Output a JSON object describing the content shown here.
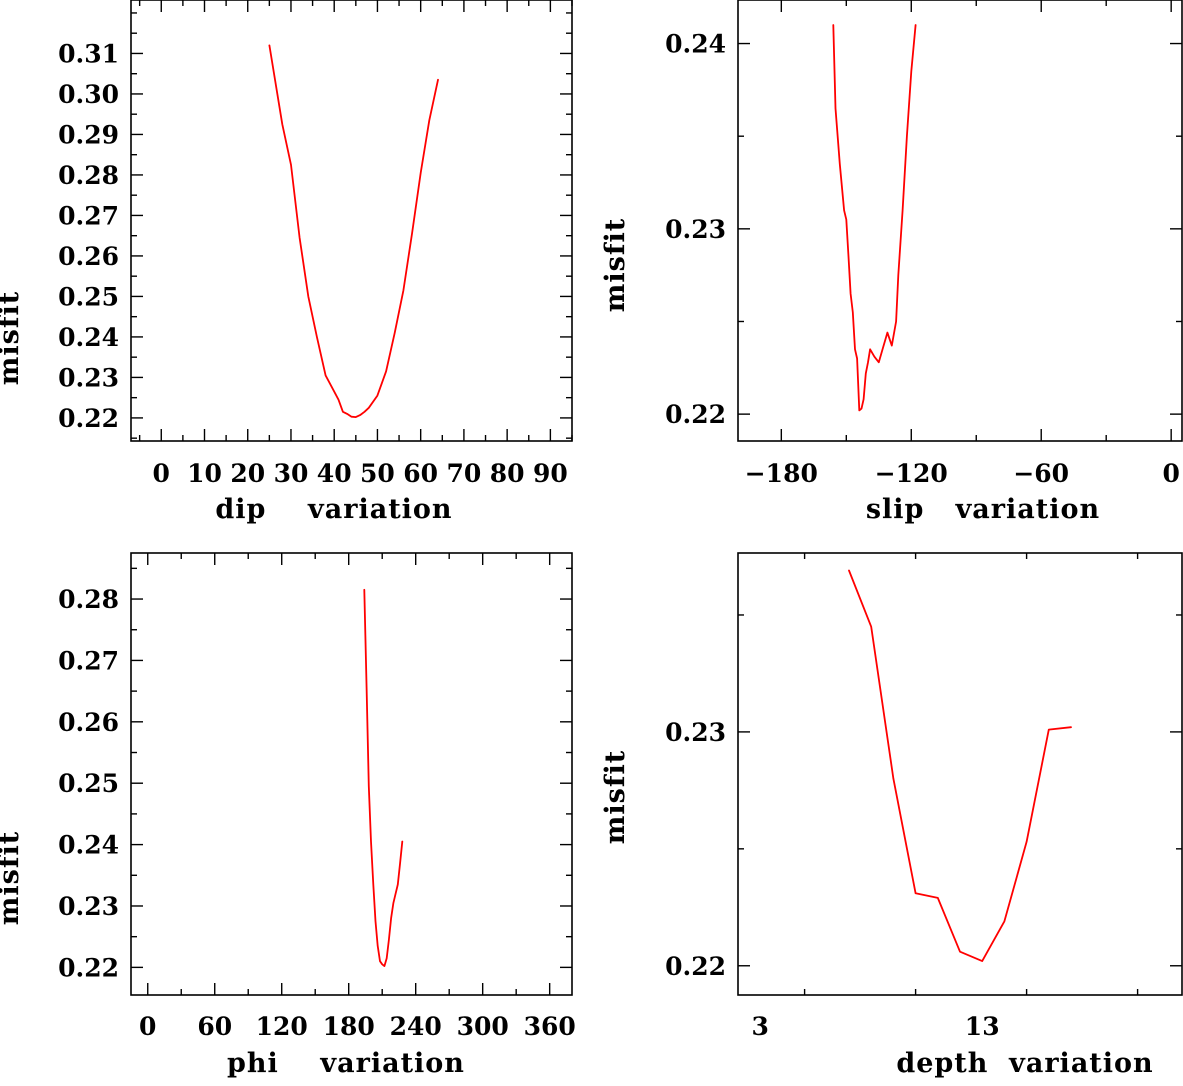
{
  "chart_data": [
    {
      "type": "line",
      "xlabel": "dip    variation",
      "ylabel": "misfit",
      "xlim": [
        -7,
        95
      ],
      "ylim": [
        0.2143,
        0.3232
      ],
      "xticks": [
        0,
        10,
        20,
        30,
        40,
        50,
        60,
        70,
        80,
        90
      ],
      "xtick_labels": [
        "0",
        "10",
        "20",
        "30",
        "40",
        "50",
        "60",
        "70",
        "80",
        "90"
      ],
      "yticks": [
        0.22,
        0.23,
        0.24,
        0.25,
        0.26,
        0.27,
        0.28,
        0.29,
        0.3,
        0.31
      ],
      "ytick_labels": [
        "0.22",
        "0.23",
        "0.24",
        "0.25",
        "0.26",
        "0.27",
        "0.28",
        "0.29",
        "0.30",
        "0.31"
      ],
      "grid": false,
      "line_color": "#ff0000",
      "series": [
        {
          "x": [
            25,
            28,
            30,
            32,
            34,
            36,
            38,
            40,
            41,
            42,
            43,
            44,
            45,
            46,
            47,
            48,
            50,
            52,
            54,
            56,
            58,
            60,
            62,
            64
          ],
          "y": [
            0.312,
            0.2925,
            0.2825,
            0.2645,
            0.25,
            0.24,
            0.2305,
            0.2265,
            0.2245,
            0.2215,
            0.221,
            0.2203,
            0.2202,
            0.2207,
            0.2215,
            0.2225,
            0.2255,
            0.2315,
            0.241,
            0.2515,
            0.2655,
            0.2805,
            0.2935,
            0.3035
          ]
        }
      ]
    },
    {
      "type": "line",
      "xlabel": "slip   variation",
      "ylabel": "misfit",
      "xlim": [
        -200,
        5
      ],
      "ylim": [
        0.21855,
        0.24235
      ],
      "xticks": [
        -180,
        -120,
        -60,
        0
      ],
      "xtick_labels": [
        "−180",
        "−120",
        "−60",
        "0"
      ],
      "yticks": [
        0.22,
        0.23,
        0.24
      ],
      "ytick_labels": [
        "0.22",
        "0.23",
        "0.24"
      ],
      "grid": false,
      "line_color": "#ff0000",
      "series": [
        {
          "x": [
            -156,
            -155,
            -153,
            -151,
            -150,
            -149,
            -148,
            -147,
            -146,
            -145,
            -144,
            -143,
            -142,
            -141,
            -140,
            -139,
            -137,
            -135,
            -133,
            -131,
            -129,
            -127,
            -126,
            -124,
            -122,
            -120,
            -118
          ],
          "y": [
            0.241,
            0.2365,
            0.2335,
            0.231,
            0.2305,
            0.2285,
            0.2265,
            0.2255,
            0.2235,
            0.223,
            0.2202,
            0.2203,
            0.2208,
            0.2222,
            0.2228,
            0.2235,
            0.2231,
            0.2228,
            0.2236,
            0.2244,
            0.2237,
            0.225,
            0.2275,
            0.231,
            0.235,
            0.2385,
            0.241
          ]
        }
      ]
    },
    {
      "type": "line",
      "xlabel": "phi    variation",
      "ylabel": "misfit",
      "xlim": [
        -15,
        380
      ],
      "ylim": [
        0.2155,
        0.2875
      ],
      "xticks": [
        0,
        60,
        120,
        180,
        240,
        300,
        360
      ],
      "xtick_labels": [
        "0",
        "60",
        "120",
        "180",
        "240",
        "300",
        "360"
      ],
      "yticks": [
        0.22,
        0.23,
        0.24,
        0.25,
        0.26,
        0.27,
        0.28
      ],
      "ytick_labels": [
        "0.22",
        "0.23",
        "0.24",
        "0.25",
        "0.26",
        "0.27",
        "0.28"
      ],
      "grid": false,
      "line_color": "#ff0000",
      "series": [
        {
          "x": [
            194,
            196,
            198,
            200,
            202,
            204,
            206,
            208,
            210,
            212,
            214,
            216,
            218,
            220,
            222,
            224,
            226,
            228
          ],
          "y": [
            0.2815,
            0.2655,
            0.2495,
            0.2405,
            0.2335,
            0.2275,
            0.2235,
            0.221,
            0.2205,
            0.2202,
            0.2215,
            0.2245,
            0.228,
            0.2305,
            0.232,
            0.2335,
            0.237,
            0.2405
          ]
        }
      ]
    },
    {
      "type": "line",
      "xlabel": "depth  variation",
      "ylabel": "misfit",
      "xlim": [
        2,
        22
      ],
      "ylim": [
        0.21875,
        0.23765
      ],
      "xticks": [
        3,
        13
      ],
      "xtick_labels": [
        "3",
        "13"
      ],
      "yticks": [
        0.22,
        0.23
      ],
      "ytick_labels": [
        "0.22",
        "0.23"
      ],
      "grid": false,
      "line_color": "#ff0000",
      "series": [
        {
          "x": [
            7,
            8,
            9,
            10,
            11,
            12,
            13,
            14,
            15,
            16,
            17
          ],
          "y": [
            0.2369,
            0.2345,
            0.228,
            0.2231,
            0.2229,
            0.2206,
            0.2202,
            0.2219,
            0.2253,
            0.2301,
            0.2302
          ]
        }
      ]
    }
  ]
}
